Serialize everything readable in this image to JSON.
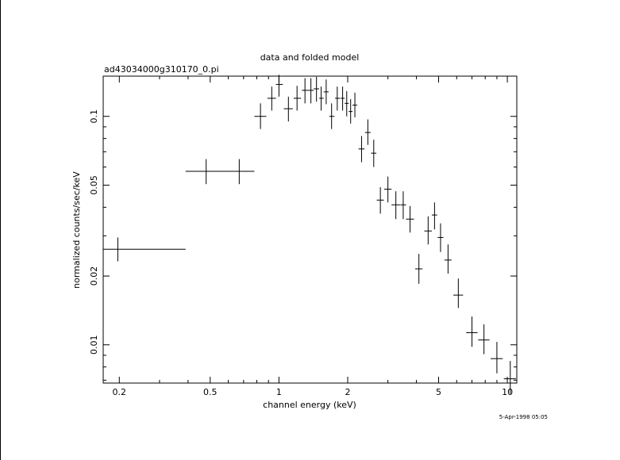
{
  "chart_data": {
    "type": "scatter",
    "title": "data and folded model",
    "subtitle": "ad43034000g310170_0.pi",
    "xlabel": "channel energy (keV)",
    "ylabel": "normalized counts/sec/keV",
    "timestamp": "5-Apr-1998 05:05",
    "x_scale": "log",
    "y_scale": "log",
    "xlim": [
      0.17,
      11
    ],
    "ylim": [
      0.0068,
      0.15
    ],
    "x_ticks": [
      {
        "value": 0.2,
        "label": "0.2"
      },
      {
        "value": 0.5,
        "label": "0.5"
      },
      {
        "value": 1,
        "label": "1"
      },
      {
        "value": 2,
        "label": "2"
      },
      {
        "value": 5,
        "label": "5"
      },
      {
        "value": 10,
        "label": "10"
      }
    ],
    "x_minor_ticks": [
      0.3,
      0.4,
      0.6,
      0.7,
      0.8,
      0.9,
      3,
      4,
      6,
      7,
      8,
      9
    ],
    "y_ticks": [
      {
        "value": 0.01,
        "label": "0.01"
      },
      {
        "value": 0.02,
        "label": "0.02"
      },
      {
        "value": 0.05,
        "label": "0.05"
      },
      {
        "value": 0.1,
        "label": "0.1"
      }
    ],
    "y_minor_ticks": [
      0.007,
      0.008,
      0.009,
      0.03,
      0.04,
      0.06,
      0.07,
      0.08,
      0.09
    ],
    "grid": false,
    "series": [
      {
        "points": [
          {
            "x": 0.197,
            "xlo": 0.17,
            "xhi": 0.39,
            "y": 0.0262,
            "ylo": 0.0232,
            "yhi": 0.0295
          },
          {
            "x": 0.48,
            "xlo": 0.39,
            "xhi": 0.56,
            "y": 0.0575,
            "ylo": 0.0505,
            "yhi": 0.065
          },
          {
            "x": 0.67,
            "xlo": 0.56,
            "xhi": 0.78,
            "y": 0.0575,
            "ylo": 0.0505,
            "yhi": 0.065
          },
          {
            "x": 0.83,
            "xlo": 0.78,
            "xhi": 0.88,
            "y": 0.1,
            "ylo": 0.088,
            "yhi": 0.114
          },
          {
            "x": 0.93,
            "xlo": 0.89,
            "xhi": 0.97,
            "y": 0.12,
            "ylo": 0.106,
            "yhi": 0.135
          },
          {
            "x": 1.0,
            "xlo": 0.97,
            "xhi": 1.04,
            "y": 0.138,
            "ylo": 0.122,
            "yhi": 0.152
          },
          {
            "x": 1.1,
            "xlo": 1.05,
            "xhi": 1.15,
            "y": 0.108,
            "ylo": 0.095,
            "yhi": 0.122
          },
          {
            "x": 1.2,
            "xlo": 1.16,
            "xhi": 1.25,
            "y": 0.12,
            "ylo": 0.106,
            "yhi": 0.136
          },
          {
            "x": 1.3,
            "xlo": 1.26,
            "xhi": 1.34,
            "y": 0.13,
            "ylo": 0.114,
            "yhi": 0.147
          },
          {
            "x": 1.38,
            "xlo": 1.34,
            "xhi": 1.42,
            "y": 0.13,
            "ylo": 0.114,
            "yhi": 0.147
          },
          {
            "x": 1.46,
            "xlo": 1.42,
            "xhi": 1.5,
            "y": 0.132,
            "ylo": 0.116,
            "yhi": 0.149
          },
          {
            "x": 1.53,
            "xlo": 1.5,
            "xhi": 1.57,
            "y": 0.12,
            "ylo": 0.106,
            "yhi": 0.135
          },
          {
            "x": 1.61,
            "xlo": 1.57,
            "xhi": 1.65,
            "y": 0.128,
            "ylo": 0.113,
            "yhi": 0.145
          },
          {
            "x": 1.7,
            "xlo": 1.66,
            "xhi": 1.75,
            "y": 0.1,
            "ylo": 0.088,
            "yhi": 0.114
          },
          {
            "x": 1.8,
            "xlo": 1.76,
            "xhi": 1.85,
            "y": 0.12,
            "ylo": 0.106,
            "yhi": 0.135
          },
          {
            "x": 1.9,
            "xlo": 1.86,
            "xhi": 1.94,
            "y": 0.12,
            "ylo": 0.106,
            "yhi": 0.135
          },
          {
            "x": 1.98,
            "xlo": 1.94,
            "xhi": 2.02,
            "y": 0.114,
            "ylo": 0.1,
            "yhi": 0.129
          },
          {
            "x": 2.06,
            "xlo": 2.02,
            "xhi": 2.1,
            "y": 0.105,
            "ylo": 0.093,
            "yhi": 0.119
          },
          {
            "x": 2.15,
            "xlo": 2.1,
            "xhi": 2.2,
            "y": 0.112,
            "ylo": 0.099,
            "yhi": 0.127
          },
          {
            "x": 2.3,
            "xlo": 2.23,
            "xhi": 2.37,
            "y": 0.072,
            "ylo": 0.063,
            "yhi": 0.082
          },
          {
            "x": 2.45,
            "xlo": 2.38,
            "xhi": 2.52,
            "y": 0.085,
            "ylo": 0.075,
            "yhi": 0.097
          },
          {
            "x": 2.6,
            "xlo": 2.53,
            "xhi": 2.67,
            "y": 0.069,
            "ylo": 0.06,
            "yhi": 0.079
          },
          {
            "x": 2.78,
            "xlo": 2.68,
            "xhi": 2.88,
            "y": 0.043,
            "ylo": 0.0375,
            "yhi": 0.049
          },
          {
            "x": 3.0,
            "xlo": 2.89,
            "xhi": 3.11,
            "y": 0.048,
            "ylo": 0.042,
            "yhi": 0.0545
          },
          {
            "x": 3.25,
            "xlo": 3.11,
            "xhi": 3.39,
            "y": 0.041,
            "ylo": 0.0355,
            "yhi": 0.047
          },
          {
            "x": 3.5,
            "xlo": 3.4,
            "xhi": 3.6,
            "y": 0.041,
            "ylo": 0.0355,
            "yhi": 0.047
          },
          {
            "x": 3.75,
            "xlo": 3.6,
            "xhi": 3.9,
            "y": 0.0355,
            "ylo": 0.031,
            "yhi": 0.0405
          },
          {
            "x": 4.1,
            "xlo": 3.95,
            "xhi": 4.25,
            "y": 0.0215,
            "ylo": 0.0185,
            "yhi": 0.025
          },
          {
            "x": 4.5,
            "xlo": 4.33,
            "xhi": 4.67,
            "y": 0.0315,
            "ylo": 0.0275,
            "yhi": 0.0365
          },
          {
            "x": 4.8,
            "xlo": 4.67,
            "xhi": 4.93,
            "y": 0.037,
            "ylo": 0.032,
            "yhi": 0.042
          },
          {
            "x": 5.1,
            "xlo": 4.95,
            "xhi": 5.25,
            "y": 0.0295,
            "ylo": 0.0255,
            "yhi": 0.034
          },
          {
            "x": 5.5,
            "xlo": 5.3,
            "xhi": 5.7,
            "y": 0.0235,
            "ylo": 0.0205,
            "yhi": 0.0275
          },
          {
            "x": 6.1,
            "xlo": 5.8,
            "xhi": 6.4,
            "y": 0.0165,
            "ylo": 0.0145,
            "yhi": 0.0195
          },
          {
            "x": 7.0,
            "xlo": 6.6,
            "xhi": 7.4,
            "y": 0.0113,
            "ylo": 0.0098,
            "yhi": 0.0133
          },
          {
            "x": 7.9,
            "xlo": 7.45,
            "xhi": 8.35,
            "y": 0.0105,
            "ylo": 0.0091,
            "yhi": 0.0123
          },
          {
            "x": 9.0,
            "xlo": 8.45,
            "xhi": 9.55,
            "y": 0.0087,
            "ylo": 0.0075,
            "yhi": 0.0103
          },
          {
            "x": 10.3,
            "xlo": 9.65,
            "xhi": 10.9,
            "y": 0.0071,
            "ylo": 0.0061,
            "yhi": 0.0085
          }
        ]
      }
    ]
  }
}
